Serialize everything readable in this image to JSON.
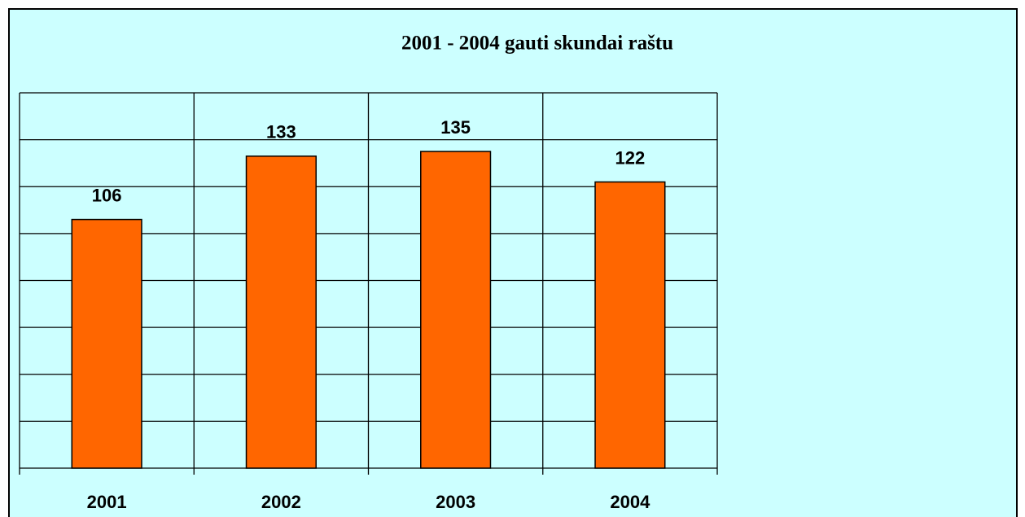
{
  "chart_data": {
    "type": "bar",
    "title": "2001 - 2004 gauti skundai raštu",
    "categories": [
      "2001",
      "2002",
      "2003",
      "2004"
    ],
    "values": [
      106,
      133,
      135,
      122
    ],
    "color": "#ff6600",
    "ylim": [
      0,
      160
    ],
    "yticks": [
      0,
      20,
      40,
      60,
      80,
      100,
      120,
      140,
      160
    ],
    "grid": true
  }
}
